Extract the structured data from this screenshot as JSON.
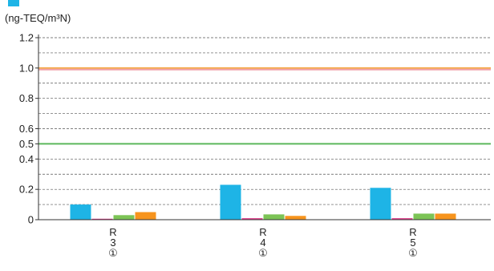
{
  "chart_data": {
    "type": "bar",
    "ylabel": "(ng-TEQ/m³N)",
    "ylim": [
      0,
      1.2
    ],
    "y_ticks": [
      {
        "value": 0,
        "label": "0"
      },
      {
        "value": 0.2,
        "label": "0.2"
      },
      {
        "value": 0.4,
        "label": "0.4"
      },
      {
        "value": 0.5,
        "label": "0.5"
      },
      {
        "value": 0.6,
        "label": "0.6"
      },
      {
        "value": 0.8,
        "label": "0.8"
      },
      {
        "value": 1.0,
        "label": "1.0"
      },
      {
        "value": 1.2,
        "label": "1.2"
      }
    ],
    "grid": "dashed horizontal",
    "categories": [
      {
        "lines": [
          "R",
          "3",
          "①"
        ]
      },
      {
        "lines": [
          "R",
          "4",
          "①"
        ]
      },
      {
        "lines": [
          "R",
          "5",
          "①"
        ]
      }
    ],
    "series": [
      {
        "color": "#1eb4e6",
        "values": [
          0.1,
          0.23,
          0.21
        ]
      },
      {
        "color": "#e0408c",
        "values": [
          0.005,
          0.01,
          0.01
        ]
      },
      {
        "color": "#7cc456",
        "values": [
          0.03,
          0.035,
          0.04
        ]
      },
      {
        "color": "#f7941d",
        "values": [
          0.05,
          0.025,
          0.04
        ]
      }
    ],
    "reference_lines": [
      {
        "value": 1.0,
        "color": "#f5a94a"
      },
      {
        "value": 0.99,
        "color": "#f0a0a8"
      },
      {
        "value": 0.5,
        "color": "#5cb85c"
      }
    ]
  }
}
